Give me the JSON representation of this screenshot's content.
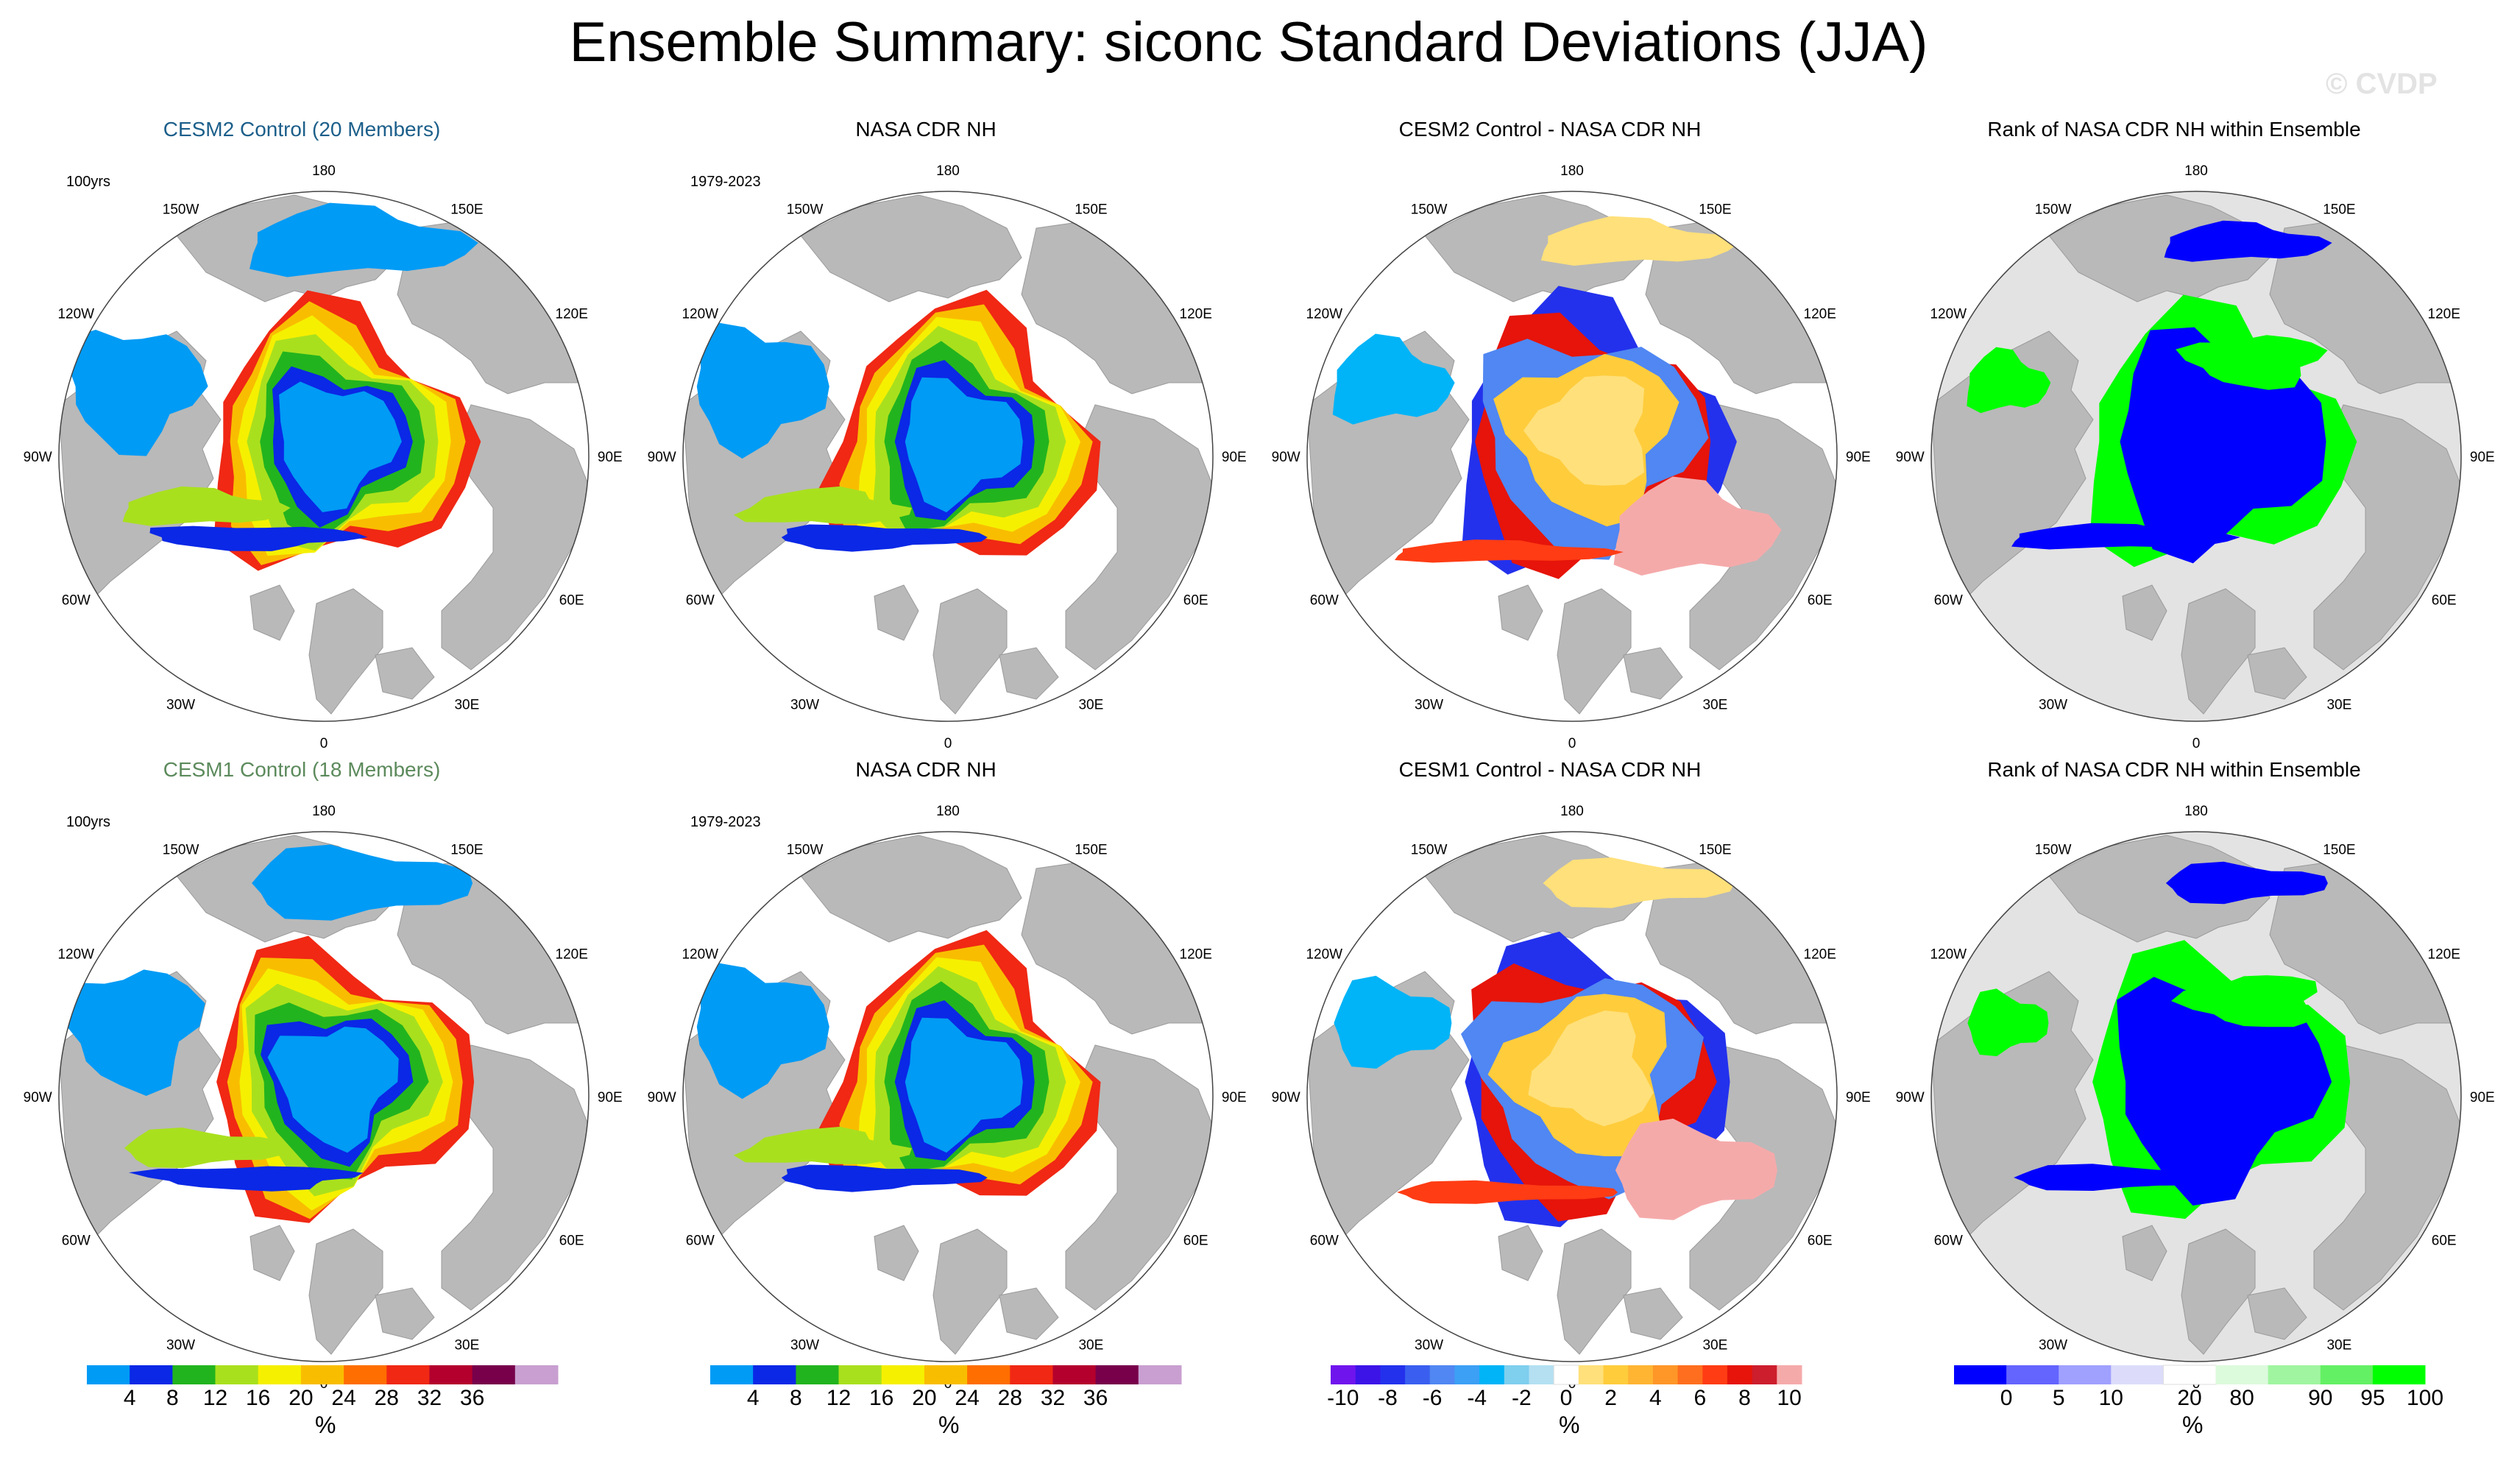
{
  "page": {
    "title": "Ensemble Summary: siconc Standard Deviations (JJA)",
    "watermark": "© CVDP"
  },
  "colors": {
    "land": "#b9b9b9",
    "ocean": "#ffffff",
    "rank_background": "#e3e3e3",
    "cesm2_title": "#1c5f8a",
    "cesm1_title": "#5c8a5c"
  },
  "longitude_labels": [
    "180",
    "150E",
    "120E",
    "90E",
    "60E",
    "30E",
    "0",
    "30W",
    "60W",
    "90W",
    "120W",
    "150W"
  ],
  "chart_data": [
    {
      "type": "heatmap",
      "id": "cesm2-control",
      "title": "CESM2 Control (20 Members)",
      "period": "100yrs",
      "kind": "stddev",
      "variant": "cesm2"
    },
    {
      "type": "heatmap",
      "id": "cesm2-obs",
      "title": "NASA CDR NH",
      "period": "1979-2023",
      "kind": "stddev",
      "variant": "obs"
    },
    {
      "type": "heatmap",
      "id": "cesm2-diff",
      "title": "CESM2 Control - NASA CDR NH",
      "kind": "diff",
      "variant": "cesm2"
    },
    {
      "type": "heatmap",
      "id": "cesm2-rank",
      "title": "Rank of NASA CDR NH within Ensemble",
      "kind": "rank",
      "variant": "cesm2"
    },
    {
      "type": "heatmap",
      "id": "cesm1-control",
      "title": "CESM1 Control (18 Members)",
      "period": "100yrs",
      "kind": "stddev",
      "variant": "cesm1"
    },
    {
      "type": "heatmap",
      "id": "cesm1-obs",
      "title": "NASA CDR NH",
      "period": "1979-2023",
      "kind": "stddev",
      "variant": "obs"
    },
    {
      "type": "heatmap",
      "id": "cesm1-diff",
      "title": "CESM1 Control - NASA CDR NH",
      "kind": "diff",
      "variant": "cesm1"
    },
    {
      "type": "heatmap",
      "id": "cesm1-rank",
      "title": "Rank of NASA CDR NH within Ensemble",
      "kind": "rank",
      "variant": "cesm1"
    }
  ],
  "colorbars": [
    {
      "id": "stddev-1",
      "unit": "%",
      "colors": [
        "#009bf5",
        "#0a28e6",
        "#22b41e",
        "#a9e01e",
        "#f5f000",
        "#f9bd00",
        "#ff6e00",
        "#f02814",
        "#b4002d",
        "#78004b",
        "#c89fd0"
      ],
      "labels": [
        "4",
        "8",
        "12",
        "16",
        "20",
        "24",
        "28",
        "32",
        "36"
      ]
    },
    {
      "id": "stddev-2",
      "unit": "%",
      "colors": [
        "#009bf5",
        "#0a28e6",
        "#22b41e",
        "#a9e01e",
        "#f5f000",
        "#f9bd00",
        "#ff6e00",
        "#f02814",
        "#b4002d",
        "#78004b",
        "#c89fd0"
      ],
      "labels": [
        "4",
        "8",
        "12",
        "16",
        "20",
        "24",
        "28",
        "32",
        "36"
      ]
    },
    {
      "id": "diff",
      "unit": "%",
      "colors": [
        "#7014ee",
        "#3c14e8",
        "#2331ed",
        "#3a5ff0",
        "#5087f2",
        "#3ca0f5",
        "#00b4f7",
        "#7fcfee",
        "#b4e0f2",
        "#ffffff",
        "#ffe07a",
        "#ffcc3c",
        "#ffb432",
        "#ff9628",
        "#ff6e1e",
        "#ff3c14",
        "#e6140a",
        "#cd1e2d",
        "#f5aaaa"
      ],
      "labels": [
        "-10",
        "-8",
        "-6",
        "-4",
        "-2",
        "0",
        "2",
        "4",
        "6",
        "8",
        "10"
      ]
    },
    {
      "id": "rank",
      "unit": "%",
      "colors": [
        "#0000ff",
        "#6464ff",
        "#a0a0ff",
        "#dcdcfa",
        "#ffffff",
        "#dcfadc",
        "#a0f5a0",
        "#64f064",
        "#00ff00"
      ],
      "labels": [
        "0",
        "5",
        "10",
        "20",
        "80",
        "90",
        "95",
        "100"
      ]
    }
  ]
}
